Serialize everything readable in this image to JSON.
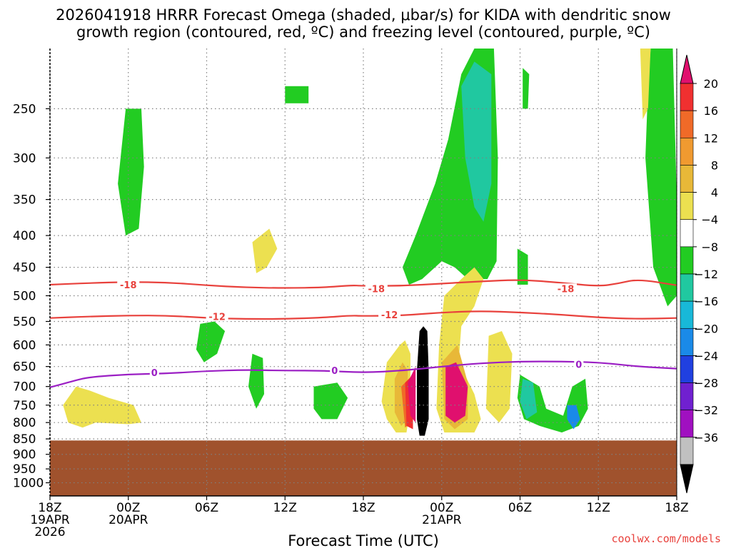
{
  "title_line1": "2026041918 HRRR Forecast Omega (shaded, μbar/s) for KIDA with dendritic snow",
  "title_line2": "growth region (contoured, red, ºC) and freezing level (contoured, purple, ºC)",
  "xlabel": "Forecast Time (UTC)",
  "credit": "coolwx.com/models",
  "colors": {
    "ground": "#a0522d",
    "dgz_contour": "#e8413c",
    "freezing_contour": "#9b1fc4",
    "grid": "#808080"
  },
  "chart_data": {
    "type": "time-height cross section",
    "y_axis": {
      "unit": "mb",
      "scale": "log-pressure",
      "ticks": [
        250,
        300,
        350,
        400,
        450,
        500,
        550,
        600,
        650,
        700,
        750,
        800,
        850,
        900,
        950,
        1000
      ],
      "tick_labels": [
        "250",
        "300",
        "350",
        "400",
        "450",
        "500",
        "550",
        "600",
        "650",
        "700",
        "750",
        "800",
        "850",
        "900",
        "950",
        "1000"
      ],
      "top_mb": 200,
      "bottom_mb": 1050,
      "surface_mb": 855
    },
    "x_axis": {
      "unit": "forecast hour",
      "range": [
        0,
        48
      ],
      "ticks": [
        0,
        6,
        12,
        18,
        24,
        30,
        36,
        42,
        48
      ],
      "tick_labels": [
        [
          "18Z",
          "19APR",
          "2026"
        ],
        [
          "00Z",
          "20APR"
        ],
        [
          "06Z"
        ],
        [
          "12Z"
        ],
        [
          "18Z"
        ],
        [
          "00Z",
          "21APR"
        ],
        [
          "06Z"
        ],
        [
          "12Z"
        ],
        [
          "18Z"
        ]
      ]
    },
    "grid": true,
    "colorbar": {
      "labels": [
        "20",
        "16",
        "12",
        "8",
        "4",
        "−4",
        "−8",
        "−12",
        "−16",
        "−20",
        "−24",
        "−28",
        "−32",
        "−36"
      ],
      "colors": [
        "#e0106e",
        "#f03030",
        "#f06a28",
        "#f09a30",
        "#e8b838",
        "#ece050",
        "#ffffff",
        "#22cc22",
        "#20c8a0",
        "#18b8d8",
        "#1a8ae8",
        "#2040e0",
        "#7020d0",
        "#a010c0",
        "#c0c0c0",
        "#000000"
      ],
      "arrow_top_color": "#e0106e",
      "arrow_bottom_color": "#000000"
    },
    "contours": [
      {
        "label": "-18",
        "color": "#e8413c",
        "label_positions": [
          [
            6.0,
            481
          ],
          [
            25.0,
            488
          ],
          [
            39.5,
            488
          ]
        ],
        "points": [
          [
            0,
            480
          ],
          [
            3,
            477
          ],
          [
            6,
            475
          ],
          [
            9,
            476
          ],
          [
            12,
            481
          ],
          [
            15,
            485
          ],
          [
            18,
            486
          ],
          [
            21,
            485
          ],
          [
            23,
            481
          ],
          [
            24,
            482
          ],
          [
            27,
            482
          ],
          [
            30,
            478
          ],
          [
            33,
            474
          ],
          [
            36,
            471
          ],
          [
            39,
            476
          ],
          [
            42,
            483
          ],
          [
            43.5,
            478
          ],
          [
            45,
            470
          ],
          [
            48,
            481
          ]
        ]
      },
      {
        "label": "-12",
        "color": "#e8413c",
        "label_positions": [
          [
            12.8,
            541
          ],
          [
            26.0,
            538
          ]
        ],
        "points": [
          [
            0,
            543
          ],
          [
            3,
            540
          ],
          [
            6,
            538
          ],
          [
            9,
            538
          ],
          [
            12,
            543
          ],
          [
            15,
            545
          ],
          [
            18,
            545
          ],
          [
            21,
            542
          ],
          [
            23,
            538
          ],
          [
            24,
            539
          ],
          [
            27,
            538
          ],
          [
            30,
            532
          ],
          [
            33,
            529
          ],
          [
            36,
            532
          ],
          [
            39,
            536
          ],
          [
            42,
            542
          ],
          [
            45,
            545
          ],
          [
            48,
            543
          ]
        ]
      },
      {
        "label": "0",
        "color": "#9b1fc4",
        "label_positions": [
          [
            8.0,
            666
          ],
          [
            21.8,
            661
          ],
          [
            40.5,
            646
          ]
        ],
        "points": [
          [
            0,
            702
          ],
          [
            2,
            684
          ],
          [
            3,
            676
          ],
          [
            6,
            669
          ],
          [
            9,
            667
          ],
          [
            12,
            661
          ],
          [
            15,
            658
          ],
          [
            18,
            660
          ],
          [
            21,
            660
          ],
          [
            24,
            665
          ],
          [
            27,
            660
          ],
          [
            30,
            650
          ],
          [
            33,
            642
          ],
          [
            36,
            638
          ],
          [
            39,
            638
          ],
          [
            42,
            640
          ],
          [
            45,
            650
          ],
          [
            48,
            655
          ]
        ]
      }
    ],
    "shaded_regions": [
      {
        "omega": -8,
        "color": "#22cc22",
        "points": [
          [
            27,
            450
          ],
          [
            28,
            400
          ],
          [
            29.5,
            330
          ],
          [
            30.5,
            280
          ],
          [
            31.5,
            220
          ],
          [
            32.5,
            200
          ],
          [
            34,
            200
          ],
          [
            34.3,
            300
          ],
          [
            34.2,
            440
          ],
          [
            33.5,
            470
          ],
          [
            32,
            470
          ],
          [
            31,
            450
          ],
          [
            30,
            440
          ],
          [
            28.5,
            470
          ],
          [
            27.5,
            480
          ]
        ]
      },
      {
        "omega": -12,
        "color": "#20c8a0",
        "points": [
          [
            31.5,
            230
          ],
          [
            32.5,
            210
          ],
          [
            33.8,
            220
          ],
          [
            33.8,
            330
          ],
          [
            33.2,
            380
          ],
          [
            32.5,
            360
          ],
          [
            31.8,
            300
          ]
        ]
      },
      {
        "omega": -8,
        "color": "#22cc22",
        "points": [
          [
            5.8,
            250
          ],
          [
            7.0,
            250
          ],
          [
            7.2,
            310
          ],
          [
            6.8,
            390
          ],
          [
            5.8,
            400
          ],
          [
            5.2,
            330
          ]
        ]
      },
      {
        "omega": -8,
        "color": "#22cc22",
        "points": [
          [
            46,
            200
          ],
          [
            47.7,
            200
          ],
          [
            48,
            350
          ],
          [
            48,
            500
          ],
          [
            47.3,
            520
          ],
          [
            46.2,
            450
          ],
          [
            45.6,
            300
          ],
          [
            45.8,
            230
          ]
        ]
      },
      {
        "omega": -8,
        "color": "#22cc22",
        "points": [
          [
            36.2,
            215
          ],
          [
            36.7,
            220
          ],
          [
            36.6,
            250
          ],
          [
            36.2,
            250
          ]
        ]
      },
      {
        "omega": -8,
        "color": "#22cc22",
        "points": [
          [
            18.0,
            230
          ],
          [
            19.8,
            230
          ],
          [
            19.8,
            245
          ],
          [
            18.0,
            245
          ]
        ]
      },
      {
        "omega": -8,
        "color": "#22cc22",
        "points": [
          [
            35.8,
            420
          ],
          [
            36.6,
            430
          ],
          [
            36.6,
            480
          ],
          [
            35.8,
            480
          ]
        ]
      },
      {
        "omega": -8,
        "color": "#22cc22",
        "points": [
          [
            11.5,
            555
          ],
          [
            12.6,
            550
          ],
          [
            13.4,
            570
          ],
          [
            12.8,
            620
          ],
          [
            11.8,
            640
          ],
          [
            11.2,
            610
          ]
        ]
      },
      {
        "omega": -8,
        "color": "#22cc22",
        "points": [
          [
            15.5,
            620
          ],
          [
            16.3,
            630
          ],
          [
            16.4,
            720
          ],
          [
            15.8,
            760
          ],
          [
            15.2,
            700
          ]
        ]
      },
      {
        "omega": -8,
        "color": "#22cc22",
        "points": [
          [
            20.2,
            700
          ],
          [
            22.0,
            690
          ],
          [
            22.8,
            730
          ],
          [
            22.0,
            790
          ],
          [
            20.8,
            790
          ],
          [
            20.2,
            760
          ]
        ]
      },
      {
        "omega": -8,
        "color": "#22cc22",
        "points": [
          [
            36.0,
            670
          ],
          [
            37.5,
            700
          ],
          [
            38.0,
            760
          ],
          [
            39.3,
            780
          ],
          [
            40.0,
            700
          ],
          [
            41.0,
            680
          ],
          [
            41.2,
            760
          ],
          [
            40.5,
            810
          ],
          [
            39.2,
            830
          ],
          [
            37.5,
            810
          ],
          [
            36.3,
            790
          ],
          [
            35.8,
            730
          ]
        ]
      },
      {
        "omega": -12,
        "color": "#20c8a0",
        "points": [
          [
            36.2,
            680
          ],
          [
            37.0,
            690
          ],
          [
            37.3,
            770
          ],
          [
            36.5,
            790
          ],
          [
            36.0,
            740
          ]
        ]
      },
      {
        "omega": -16,
        "color": "#1a8ae8",
        "points": [
          [
            39.6,
            750
          ],
          [
            40.3,
            750
          ],
          [
            40.6,
            790
          ],
          [
            40.1,
            820
          ],
          [
            39.6,
            790
          ]
        ]
      },
      {
        "omega": 4,
        "color": "#ece050",
        "points": [
          [
            25.8,
            640
          ],
          [
            26.8,
            600
          ],
          [
            27.2,
            590
          ],
          [
            27.6,
            620
          ],
          [
            27.6,
            760
          ],
          [
            27.3,
            830
          ],
          [
            26.5,
            830
          ],
          [
            25.8,
            790
          ],
          [
            25.4,
            740
          ]
        ]
      },
      {
        "omega": 4,
        "color": "#ece050",
        "points": [
          [
            29.8,
            600
          ],
          [
            30.2,
            500
          ],
          [
            31.5,
            470
          ],
          [
            32.5,
            450
          ],
          [
            33.2,
            470
          ],
          [
            32.5,
            520
          ],
          [
            31.5,
            560
          ],
          [
            31.3,
            640
          ],
          [
            32.5,
            720
          ],
          [
            33.0,
            790
          ],
          [
            32.5,
            830
          ],
          [
            30.2,
            830
          ],
          [
            29.6,
            760
          ]
        ]
      },
      {
        "omega": 4,
        "color": "#ece050",
        "points": [
          [
            33.6,
            580
          ],
          [
            34.6,
            570
          ],
          [
            35.4,
            620
          ],
          [
            35.2,
            760
          ],
          [
            34.4,
            800
          ],
          [
            33.4,
            760
          ]
        ]
      },
      {
        "omega": 4,
        "color": "#ece050",
        "points": [
          [
            1.0,
            750
          ],
          [
            2.0,
            700
          ],
          [
            3.0,
            710
          ],
          [
            4.5,
            730
          ],
          [
            6.4,
            750
          ],
          [
            7.0,
            800
          ],
          [
            6.0,
            805
          ],
          [
            3.5,
            800
          ],
          [
            2.5,
            815
          ],
          [
            1.4,
            800
          ]
        ]
      },
      {
        "omega": 4,
        "color": "#ece050",
        "points": [
          [
            15.5,
            410
          ],
          [
            16.8,
            390
          ],
          [
            17.4,
            420
          ],
          [
            16.6,
            450
          ],
          [
            15.8,
            460
          ]
        ]
      },
      {
        "omega": 4,
        "color": "#ece050",
        "points": [
          [
            45.2,
            200
          ],
          [
            46.0,
            200
          ],
          [
            45.8,
            250
          ],
          [
            45.4,
            260
          ]
        ]
      },
      {
        "omega": 8,
        "color": "#e8b838",
        "points": [
          [
            26.4,
            680
          ],
          [
            27.0,
            640
          ],
          [
            27.4,
            660
          ],
          [
            27.4,
            790
          ],
          [
            26.9,
            810
          ],
          [
            26.4,
            770
          ]
        ]
      },
      {
        "omega": 8,
        "color": "#e8b838",
        "points": [
          [
            30.0,
            640
          ],
          [
            31.2,
            600
          ],
          [
            32.0,
            690
          ],
          [
            32.0,
            790
          ],
          [
            31.0,
            820
          ],
          [
            30.2,
            790
          ]
        ]
      },
      {
        "omega": 12,
        "color": "#f06a28",
        "points": [
          [
            26.9,
            700
          ],
          [
            27.5,
            680
          ],
          [
            27.6,
            800
          ],
          [
            27.2,
            815
          ]
        ]
      },
      {
        "omega": 16,
        "color": "#f03030",
        "points": [
          [
            27.2,
            690
          ],
          [
            27.8,
            670
          ],
          [
            27.8,
            820
          ],
          [
            27.3,
            810
          ]
        ]
      },
      {
        "omega": 20,
        "color": "#e0106e",
        "points": [
          [
            27.4,
            690
          ],
          [
            28.0,
            650
          ],
          [
            28.0,
            800
          ],
          [
            27.6,
            780
          ]
        ]
      },
      {
        "omega": 20,
        "color": "#e0106e",
        "points": [
          [
            30.3,
            650
          ],
          [
            31.1,
            640
          ],
          [
            32.0,
            700
          ],
          [
            31.8,
            780
          ],
          [
            31.0,
            800
          ],
          [
            30.3,
            780
          ]
        ]
      },
      {
        "omega": -36,
        "color": "#000000",
        "points": [
          [
            28.3,
            570
          ],
          [
            28.6,
            560
          ],
          [
            28.9,
            570
          ],
          [
            29.0,
            660
          ],
          [
            29.0,
            790
          ],
          [
            28.7,
            840
          ],
          [
            28.3,
            840
          ],
          [
            28.1,
            790
          ],
          [
            28.1,
            660
          ]
        ]
      }
    ]
  }
}
